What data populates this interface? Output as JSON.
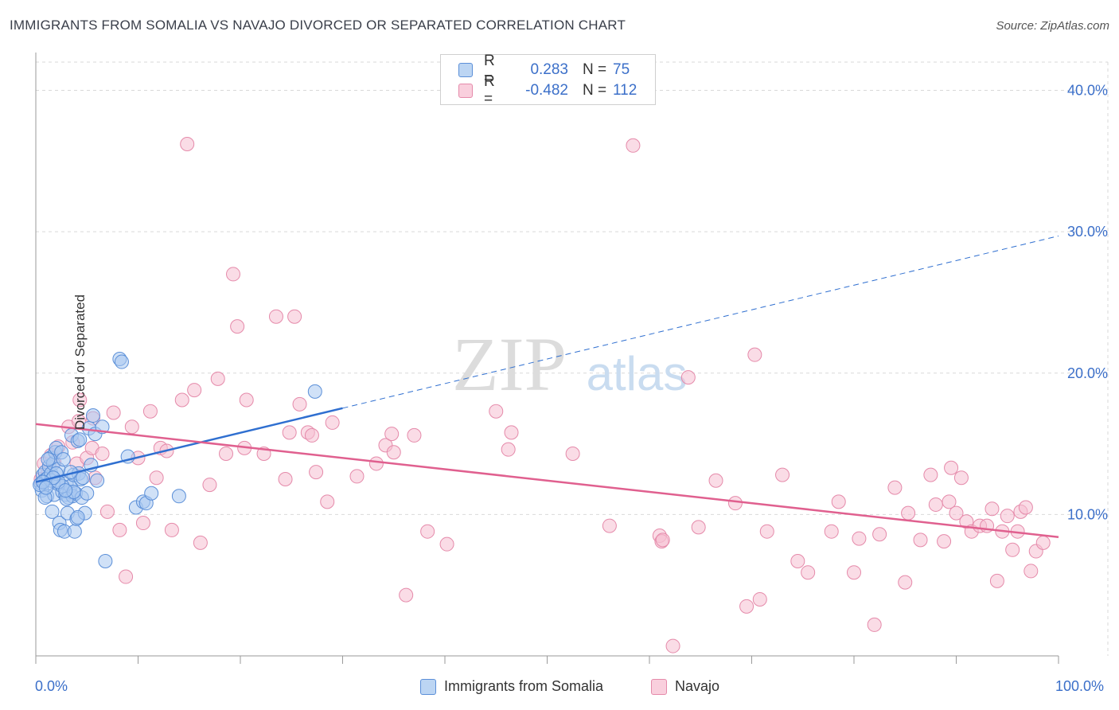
{
  "title": "IMMIGRANTS FROM SOMALIA VS NAVAJO DIVORCED OR SEPARATED CORRELATION CHART",
  "source": "Source: ZipAtlas.com",
  "colors": {
    "blue_fill": "#a9c8f0",
    "blue_stroke": "#5b8fd8",
    "blue_line": "#2f6fd0",
    "pink_fill": "#f6bfd2",
    "pink_stroke": "#e58aaa",
    "pink_line": "#e0608f",
    "accent_text": "#3b6fc9",
    "grid": "#d9d9d9"
  },
  "legend": {
    "rows": [
      {
        "r_label": "R =",
        "r_value": "0.283",
        "n_label": "N =",
        "n_value": "75"
      },
      {
        "r_label": "R =",
        "r_value": "-0.482",
        "n_label": "N =",
        "n_value": "112"
      }
    ]
  },
  "bottom_legend": [
    "Immigrants from Somalia",
    "Navajo"
  ],
  "watermark": {
    "zip": "ZIP",
    "atlas": "atlas"
  },
  "chart_data": {
    "type": "scatter",
    "xlabel": "",
    "ylabel": "Divorced or Separated",
    "xlim": [
      0,
      100
    ],
    "ylim": [
      0,
      42
    ],
    "x_tick_labels": [
      "0.0%",
      "100.0%"
    ],
    "y_ticks": [
      10,
      20,
      30,
      40
    ],
    "y_tick_labels": [
      "10.0%",
      "20.0%",
      "30.0%",
      "40.0%"
    ],
    "grid": true,
    "series": [
      {
        "name": "Immigrants from Somalia",
        "color": "#5b8fd8",
        "points": [
          [
            0.5,
            12.2
          ],
          [
            0.6,
            11.7
          ],
          [
            0.7,
            12.8
          ],
          [
            0.8,
            12.4
          ],
          [
            0.9,
            13.0
          ],
          [
            1.0,
            12.5
          ],
          [
            1.1,
            11.3
          ],
          [
            1.2,
            12.6
          ],
          [
            1.3,
            13.4
          ],
          [
            1.4,
            14.0
          ],
          [
            1.5,
            12.9
          ],
          [
            1.6,
            10.2
          ],
          [
            1.7,
            13.6
          ],
          [
            1.8,
            11.4
          ],
          [
            1.9,
            14.4
          ],
          [
            2.0,
            14.7
          ],
          [
            2.1,
            12.2
          ],
          [
            2.2,
            13.2
          ],
          [
            2.3,
            9.4
          ],
          [
            2.4,
            8.9
          ],
          [
            2.5,
            14.4
          ],
          [
            2.6,
            11.6
          ],
          [
            2.7,
            13.9
          ],
          [
            2.8,
            8.8
          ],
          [
            2.9,
            11.4
          ],
          [
            3.0,
            12.2
          ],
          [
            3.1,
            10.1
          ],
          [
            3.2,
            11.2
          ],
          [
            3.3,
            11.6
          ],
          [
            3.4,
            12.0
          ],
          [
            3.5,
            15.6
          ],
          [
            3.6,
            11.3
          ],
          [
            3.7,
            12.8
          ],
          [
            3.8,
            8.8
          ],
          [
            3.9,
            11.5
          ],
          [
            4.0,
            9.7
          ],
          [
            4.1,
            15.2
          ],
          [
            4.2,
            12.9
          ],
          [
            4.3,
            15.3
          ],
          [
            4.4,
            12.5
          ],
          [
            4.5,
            11.2
          ],
          [
            4.6,
            12.6
          ],
          [
            4.8,
            10.1
          ],
          [
            5.0,
            11.5
          ],
          [
            5.2,
            16.1
          ],
          [
            5.4,
            13.5
          ],
          [
            5.6,
            17.0
          ],
          [
            5.8,
            15.7
          ],
          [
            6.0,
            12.4
          ],
          [
            6.5,
            16.2
          ],
          [
            6.8,
            6.7
          ],
          [
            8.2,
            21.0
          ],
          [
            8.4,
            20.8
          ],
          [
            9.0,
            14.1
          ],
          [
            9.8,
            10.5
          ],
          [
            10.5,
            10.9
          ],
          [
            10.8,
            10.8
          ],
          [
            11.3,
            11.5
          ],
          [
            14.0,
            11.3
          ],
          [
            27.3,
            18.7
          ],
          [
            0.4,
            12.1
          ],
          [
            0.9,
            11.2
          ],
          [
            1.5,
            12.4
          ],
          [
            2.0,
            12.9
          ],
          [
            2.6,
            12.0
          ],
          [
            3.0,
            11.1
          ],
          [
            3.4,
            13.0
          ],
          [
            1.2,
            13.9
          ],
          [
            2.2,
            12.3
          ],
          [
            1.7,
            12.6
          ],
          [
            0.7,
            12.3
          ],
          [
            1.0,
            11.9
          ],
          [
            3.7,
            11.6
          ],
          [
            4.1,
            9.8
          ],
          [
            2.9,
            11.7
          ]
        ],
        "trend": {
          "x0": 0,
          "y0": 12.3,
          "x1": 100,
          "y1": 29.7,
          "solid_until": 30
        }
      },
      {
        "name": "Navajo",
        "color": "#e58aaa",
        "points": [
          [
            0.5,
            12.5
          ],
          [
            0.8,
            13.6
          ],
          [
            1.2,
            13.0
          ],
          [
            1.5,
            14.2
          ],
          [
            1.8,
            13.7
          ],
          [
            2.2,
            14.8
          ],
          [
            3.2,
            16.2
          ],
          [
            3.6,
            15.1
          ],
          [
            4.0,
            13.6
          ],
          [
            4.2,
            16.6
          ],
          [
            4.3,
            18.1
          ],
          [
            5.0,
            14.0
          ],
          [
            5.5,
            14.7
          ],
          [
            5.6,
            16.8
          ],
          [
            5.8,
            12.6
          ],
          [
            6.5,
            14.3
          ],
          [
            7.0,
            10.2
          ],
          [
            7.6,
            17.2
          ],
          [
            8.2,
            8.9
          ],
          [
            8.8,
            5.6
          ],
          [
            9.4,
            16.2
          ],
          [
            10.0,
            14.0
          ],
          [
            10.5,
            9.4
          ],
          [
            11.2,
            17.3
          ],
          [
            11.8,
            12.6
          ],
          [
            12.2,
            14.7
          ],
          [
            12.8,
            14.5
          ],
          [
            13.3,
            8.9
          ],
          [
            14.3,
            18.1
          ],
          [
            14.8,
            36.2
          ],
          [
            15.5,
            18.8
          ],
          [
            16.1,
            8.0
          ],
          [
            17.0,
            12.1
          ],
          [
            17.8,
            19.6
          ],
          [
            18.6,
            14.3
          ],
          [
            19.3,
            27.0
          ],
          [
            19.7,
            23.3
          ],
          [
            20.4,
            14.7
          ],
          [
            20.6,
            18.1
          ],
          [
            22.3,
            14.3
          ],
          [
            23.5,
            24.0
          ],
          [
            24.4,
            12.5
          ],
          [
            24.8,
            15.8
          ],
          [
            25.3,
            24.0
          ],
          [
            25.8,
            17.8
          ],
          [
            26.6,
            15.8
          ],
          [
            27.0,
            15.6
          ],
          [
            27.4,
            13.0
          ],
          [
            28.5,
            10.9
          ],
          [
            29.0,
            16.5
          ],
          [
            31.4,
            12.7
          ],
          [
            33.3,
            13.6
          ],
          [
            34.2,
            14.9
          ],
          [
            34.8,
            15.7
          ],
          [
            35.0,
            14.4
          ],
          [
            36.2,
            4.3
          ],
          [
            37.0,
            15.6
          ],
          [
            38.3,
            8.8
          ],
          [
            40.2,
            7.9
          ],
          [
            45.0,
            17.3
          ],
          [
            46.2,
            14.6
          ],
          [
            46.5,
            15.8
          ],
          [
            52.5,
            14.3
          ],
          [
            56.1,
            9.2
          ],
          [
            58.4,
            36.1
          ],
          [
            61.0,
            8.5
          ],
          [
            61.2,
            8.1
          ],
          [
            61.3,
            8.2
          ],
          [
            62.3,
            0.7
          ],
          [
            63.8,
            19.7
          ],
          [
            64.8,
            9.1
          ],
          [
            66.5,
            12.4
          ],
          [
            68.4,
            10.8
          ],
          [
            69.5,
            3.5
          ],
          [
            70.3,
            21.3
          ],
          [
            70.8,
            4.0
          ],
          [
            71.5,
            8.8
          ],
          [
            73.0,
            12.8
          ],
          [
            74.5,
            6.7
          ],
          [
            75.5,
            5.9
          ],
          [
            77.8,
            8.8
          ],
          [
            78.5,
            10.9
          ],
          [
            80.0,
            5.9
          ],
          [
            80.5,
            8.3
          ],
          [
            82.0,
            2.2
          ],
          [
            82.5,
            8.6
          ],
          [
            84.0,
            11.9
          ],
          [
            85.0,
            5.2
          ],
          [
            85.3,
            10.1
          ],
          [
            86.5,
            8.2
          ],
          [
            87.5,
            12.8
          ],
          [
            88.0,
            10.7
          ],
          [
            88.8,
            8.1
          ],
          [
            89.3,
            10.9
          ],
          [
            89.5,
            13.3
          ],
          [
            90.0,
            10.1
          ],
          [
            90.5,
            12.6
          ],
          [
            91.0,
            9.5
          ],
          [
            91.5,
            8.8
          ],
          [
            92.3,
            9.2
          ],
          [
            93.0,
            9.2
          ],
          [
            93.5,
            10.4
          ],
          [
            94.0,
            5.3
          ],
          [
            94.5,
            8.8
          ],
          [
            95.0,
            9.9
          ],
          [
            95.5,
            7.5
          ],
          [
            96.0,
            8.8
          ],
          [
            96.3,
            10.2
          ],
          [
            96.8,
            10.5
          ],
          [
            97.3,
            6.0
          ],
          [
            97.8,
            7.4
          ],
          [
            98.5,
            8.0
          ]
        ],
        "trend": {
          "x0": 0,
          "y0": 16.4,
          "x1": 100,
          "y1": 8.4,
          "solid_until": 100
        }
      }
    ]
  }
}
